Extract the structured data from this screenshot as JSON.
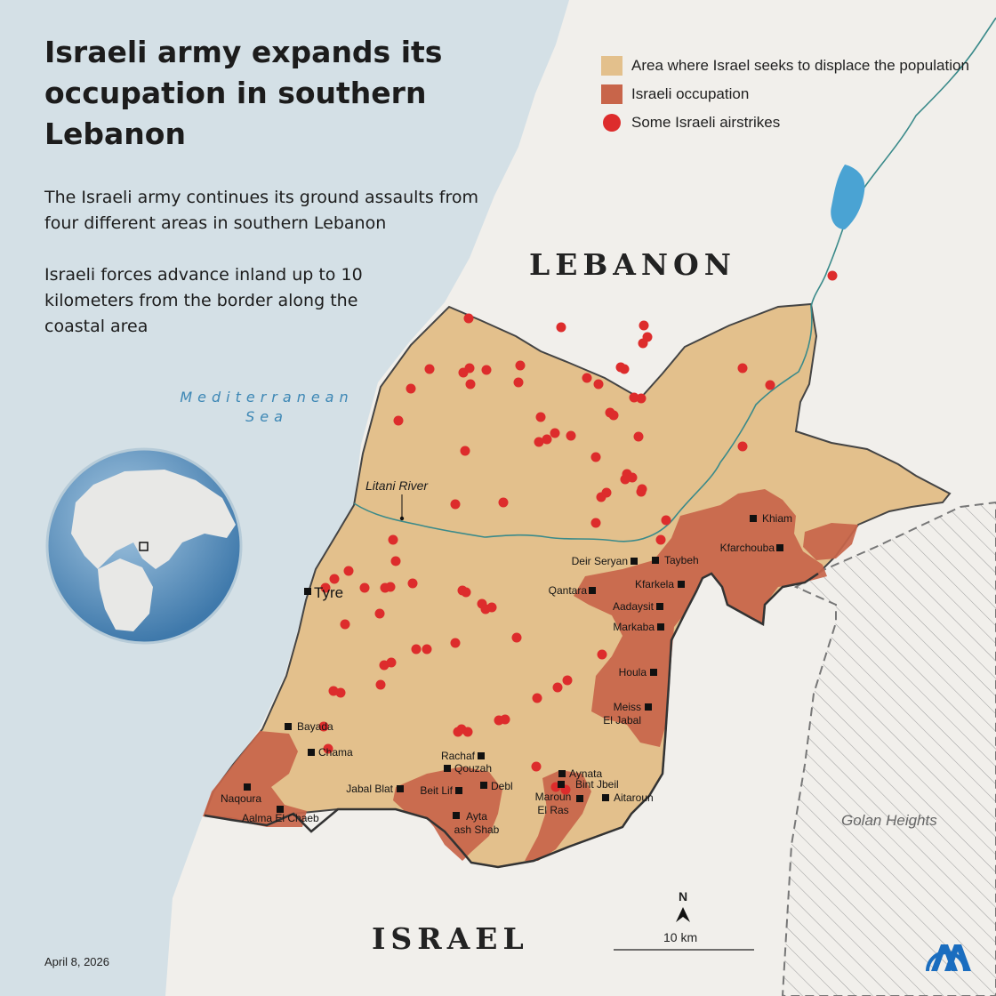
{
  "title": "Israeli army expands its occupation in southern Lebanon",
  "paragraphs": [
    "The Israeli army continues its ground assaults from four different areas in southern Lebanon",
    "Israeli forces advance inland up to 10 kilometers from the border along the coastal area"
  ],
  "legend": [
    {
      "label": "Area where Israel seeks to displace the population",
      "color": "#e3c08c",
      "marker": "swatch"
    },
    {
      "label": "Israeli occupation",
      "color": "#c8654a",
      "marker": "swatch"
    },
    {
      "label": "Some Israeli airstrikes",
      "color": "#dd2c2c",
      "marker": "dot"
    }
  ],
  "labels": {
    "lebanon": "LEBANON",
    "israel": "ISRAEL",
    "sea": "Mediterranean\nSea",
    "golan": "Golan Heights",
    "litani": "Litani River",
    "tyre": "Tyre"
  },
  "towns": [
    "Khiam",
    "Kfarchouba",
    "Deir Seryan",
    "Taybeh",
    "Qantara",
    "Kfarkela",
    "Aadaysit",
    "Markaba",
    "Houla",
    "Meiss El Jabal",
    "Bayada",
    "Chama",
    "Naqoura",
    "Aalma El Chaeb",
    "Rachaf",
    "Qouzah",
    "Jabal Blat",
    "Beit Lif",
    "Debl",
    "Ayta ash Shab",
    "Aynata",
    "Bint Jbeil",
    "Maroun El Ras",
    "Aitaroun"
  ],
  "scale": "10 km",
  "north": "N",
  "date": "April 8, 2026",
  "logo": "AA",
  "colors": {
    "sea": "#d4e0e6",
    "land": "#f1efeb",
    "displacement_area": "#e3c08c",
    "occupation": "#c8654a",
    "airstrike": "#dd2c2c",
    "river": "#3a8a8a"
  }
}
